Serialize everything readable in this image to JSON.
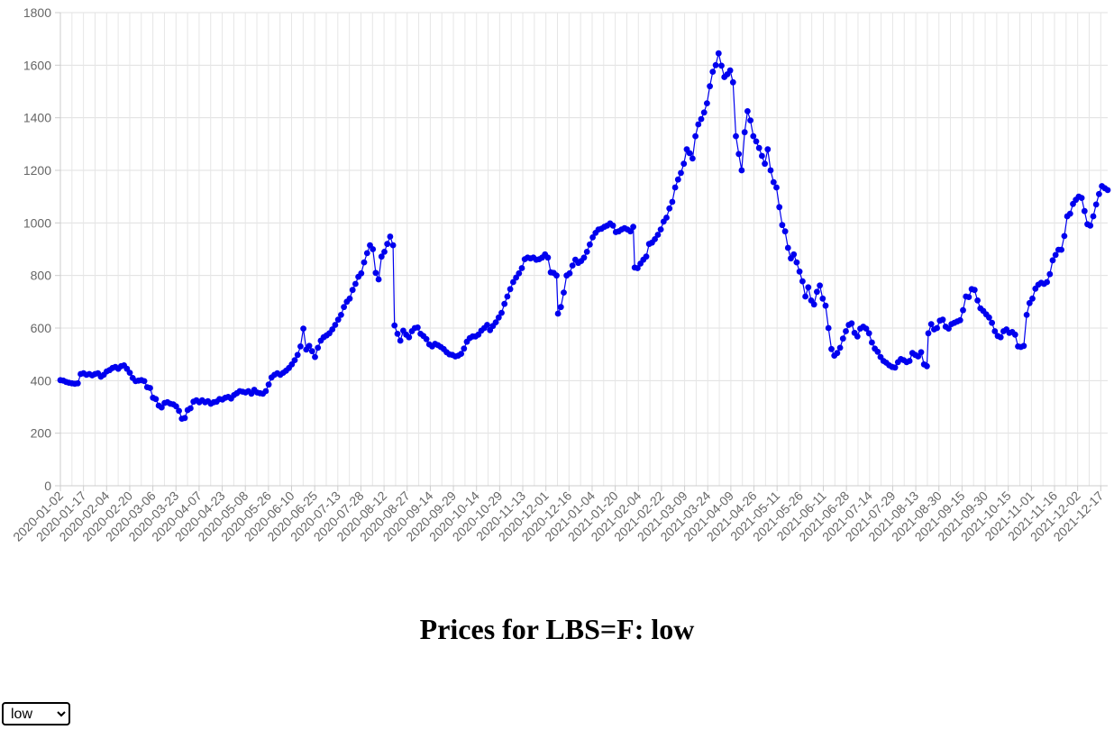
{
  "title": "Prices for LBS=F: low",
  "field_select": {
    "value": "low",
    "options": [
      "low"
    ]
  },
  "chart_data": {
    "type": "line",
    "ylim": [
      0,
      1800
    ],
    "yticks": [
      0,
      200,
      400,
      600,
      800,
      1000,
      1200,
      1400,
      1600,
      1800
    ],
    "xlabels": [
      "2020-01-02",
      "2020-01-17",
      "2020-02-04",
      "2020-02-20",
      "2020-03-06",
      "2020-03-23",
      "2020-04-07",
      "2020-04-23",
      "2020-05-08",
      "2020-05-26",
      "2020-06-10",
      "2020-06-25",
      "2020-07-13",
      "2020-07-28",
      "2020-08-12",
      "2020-08-27",
      "2020-09-14",
      "2020-09-29",
      "2020-10-14",
      "2020-10-29",
      "2020-11-13",
      "2020-12-01",
      "2020-12-16",
      "2021-01-04",
      "2021-01-20",
      "2021-02-04",
      "2021-02-22",
      "2021-03-09",
      "2021-03-24",
      "2021-04-09",
      "2021-04-26",
      "2021-05-11",
      "2021-05-26",
      "2021-06-11",
      "2021-06-28",
      "2021-07-14",
      "2021-07-29",
      "2021-08-13",
      "2021-08-30",
      "2021-09-15",
      "2021-09-30",
      "2021-10-15",
      "2021-11-01",
      "2021-11-16",
      "2021-12-02",
      "2021-12-17"
    ],
    "grid": true,
    "color": "#0000ee",
    "values": [
      [
        0,
        402
      ],
      [
        2,
        400
      ],
      [
        4,
        395
      ],
      [
        6,
        392
      ],
      [
        8,
        390
      ],
      [
        10,
        388
      ],
      [
        12,
        390
      ],
      [
        14,
        425
      ],
      [
        16,
        428
      ],
      [
        18,
        422
      ],
      [
        20,
        425
      ],
      [
        22,
        420
      ],
      [
        24,
        425
      ],
      [
        26,
        428
      ],
      [
        28,
        415
      ],
      [
        30,
        422
      ],
      [
        32,
        435
      ],
      [
        34,
        440
      ],
      [
        36,
        448
      ],
      [
        38,
        452
      ],
      [
        40,
        445
      ],
      [
        42,
        455
      ],
      [
        44,
        458
      ],
      [
        46,
        445
      ],
      [
        48,
        430
      ],
      [
        50,
        410
      ],
      [
        52,
        398
      ],
      [
        54,
        400
      ],
      [
        56,
        402
      ],
      [
        58,
        398
      ],
      [
        60,
        375
      ],
      [
        62,
        372
      ],
      [
        64,
        335
      ],
      [
        66,
        330
      ],
      [
        68,
        305
      ],
      [
        70,
        298
      ],
      [
        72,
        315
      ],
      [
        74,
        318
      ],
      [
        76,
        312
      ],
      [
        78,
        310
      ],
      [
        80,
        302
      ],
      [
        82,
        285
      ],
      [
        84,
        255
      ],
      [
        86,
        258
      ],
      [
        88,
        288
      ],
      [
        90,
        295
      ],
      [
        92,
        320
      ],
      [
        94,
        325
      ],
      [
        96,
        318
      ],
      [
        98,
        325
      ],
      [
        100,
        318
      ],
      [
        102,
        322
      ],
      [
        104,
        312
      ],
      [
        106,
        318
      ],
      [
        108,
        320
      ],
      [
        110,
        330
      ],
      [
        112,
        328
      ],
      [
        114,
        335
      ],
      [
        116,
        338
      ],
      [
        118,
        332
      ],
      [
        120,
        345
      ],
      [
        122,
        352
      ],
      [
        124,
        360
      ],
      [
        126,
        358
      ],
      [
        128,
        355
      ],
      [
        130,
        360
      ],
      [
        132,
        350
      ],
      [
        134,
        365
      ],
      [
        136,
        355
      ],
      [
        138,
        352
      ],
      [
        140,
        350
      ],
      [
        142,
        360
      ],
      [
        144,
        385
      ],
      [
        146,
        412
      ],
      [
        148,
        422
      ],
      [
        150,
        428
      ],
      [
        152,
        422
      ],
      [
        154,
        430
      ],
      [
        156,
        438
      ],
      [
        158,
        448
      ],
      [
        160,
        462
      ],
      [
        162,
        478
      ],
      [
        164,
        498
      ],
      [
        166,
        530
      ],
      [
        168,
        598
      ],
      [
        170,
        518
      ],
      [
        172,
        532
      ],
      [
        174,
        512
      ],
      [
        176,
        490
      ],
      [
        178,
        525
      ],
      [
        180,
        552
      ],
      [
        182,
        565
      ],
      [
        184,
        572
      ],
      [
        186,
        580
      ],
      [
        188,
        595
      ],
      [
        190,
        612
      ],
      [
        192,
        632
      ],
      [
        194,
        650
      ],
      [
        196,
        680
      ],
      [
        198,
        700
      ],
      [
        200,
        712
      ],
      [
        202,
        745
      ],
      [
        204,
        768
      ],
      [
        206,
        795
      ],
      [
        208,
        808
      ],
      [
        210,
        850
      ],
      [
        212,
        885
      ],
      [
        214,
        915
      ],
      [
        216,
        900
      ],
      [
        218,
        810
      ],
      [
        220,
        785
      ],
      [
        222,
        872
      ],
      [
        224,
        890
      ],
      [
        226,
        920
      ],
      [
        228,
        948
      ],
      [
        230,
        915
      ],
      [
        231,
        610
      ],
      [
        233,
        578
      ],
      [
        235,
        552
      ],
      [
        237,
        590
      ],
      [
        239,
        575
      ],
      [
        241,
        565
      ],
      [
        243,
        588
      ],
      [
        245,
        600
      ],
      [
        247,
        602
      ],
      [
        249,
        578
      ],
      [
        251,
        570
      ],
      [
        253,
        558
      ],
      [
        255,
        538
      ],
      [
        257,
        530
      ],
      [
        259,
        540
      ],
      [
        261,
        535
      ],
      [
        263,
        528
      ],
      [
        265,
        520
      ],
      [
        267,
        508
      ],
      [
        269,
        500
      ],
      [
        271,
        498
      ],
      [
        273,
        492
      ],
      [
        275,
        495
      ],
      [
        277,
        502
      ],
      [
        279,
        522
      ],
      [
        281,
        548
      ],
      [
        283,
        562
      ],
      [
        285,
        568
      ],
      [
        287,
        568
      ],
      [
        289,
        575
      ],
      [
        291,
        590
      ],
      [
        293,
        600
      ],
      [
        295,
        612
      ],
      [
        297,
        592
      ],
      [
        299,
        608
      ],
      [
        301,
        622
      ],
      [
        303,
        640
      ],
      [
        305,
        658
      ],
      [
        307,
        692
      ],
      [
        309,
        720
      ],
      [
        311,
        748
      ],
      [
        313,
        775
      ],
      [
        315,
        792
      ],
      [
        317,
        808
      ],
      [
        319,
        828
      ],
      [
        321,
        862
      ],
      [
        323,
        868
      ],
      [
        325,
        865
      ],
      [
        327,
        868
      ],
      [
        329,
        860
      ],
      [
        331,
        862
      ],
      [
        333,
        868
      ],
      [
        335,
        880
      ],
      [
        337,
        868
      ],
      [
        339,
        812
      ],
      [
        341,
        810
      ],
      [
        343,
        800
      ],
      [
        344,
        655
      ],
      [
        346,
        680
      ],
      [
        348,
        735
      ],
      [
        350,
        800
      ],
      [
        352,
        808
      ],
      [
        354,
        838
      ],
      [
        356,
        860
      ],
      [
        358,
        848
      ],
      [
        360,
        855
      ],
      [
        362,
        868
      ],
      [
        364,
        890
      ],
      [
        366,
        918
      ],
      [
        368,
        945
      ],
      [
        370,
        962
      ],
      [
        372,
        975
      ],
      [
        374,
        978
      ],
      [
        376,
        985
      ],
      [
        378,
        990
      ],
      [
        380,
        998
      ],
      [
        382,
        990
      ],
      [
        384,
        965
      ],
      [
        386,
        968
      ],
      [
        388,
        975
      ],
      [
        390,
        980
      ],
      [
        392,
        975
      ],
      [
        394,
        968
      ],
      [
        396,
        985
      ],
      [
        397,
        830
      ],
      [
        399,
        828
      ],
      [
        401,
        845
      ],
      [
        403,
        860
      ],
      [
        405,
        872
      ],
      [
        407,
        920
      ],
      [
        409,
        925
      ],
      [
        411,
        938
      ],
      [
        413,
        955
      ],
      [
        415,
        975
      ],
      [
        417,
        1005
      ],
      [
        419,
        1020
      ],
      [
        421,
        1055
      ],
      [
        423,
        1080
      ],
      [
        425,
        1135
      ],
      [
        427,
        1165
      ],
      [
        429,
        1190
      ],
      [
        431,
        1225
      ],
      [
        433,
        1280
      ],
      [
        435,
        1265
      ],
      [
        437,
        1245
      ],
      [
        439,
        1330
      ],
      [
        441,
        1375
      ],
      [
        443,
        1395
      ],
      [
        445,
        1420
      ],
      [
        447,
        1455
      ],
      [
        449,
        1520
      ],
      [
        451,
        1575
      ],
      [
        453,
        1600
      ],
      [
        455,
        1645
      ],
      [
        457,
        1598
      ],
      [
        459,
        1555
      ],
      [
        461,
        1565
      ],
      [
        463,
        1580
      ],
      [
        465,
        1535
      ],
      [
        467,
        1330
      ],
      [
        469,
        1262
      ],
      [
        471,
        1200
      ],
      [
        473,
        1345
      ],
      [
        475,
        1425
      ],
      [
        477,
        1390
      ],
      [
        479,
        1330
      ],
      [
        481,
        1310
      ],
      [
        483,
        1285
      ],
      [
        485,
        1255
      ],
      [
        487,
        1225
      ],
      [
        489,
        1280
      ],
      [
        491,
        1200
      ],
      [
        493,
        1155
      ],
      [
        495,
        1135
      ],
      [
        497,
        1060
      ],
      [
        499,
        992
      ],
      [
        501,
        968
      ],
      [
        503,
        905
      ],
      [
        505,
        865
      ],
      [
        507,
        880
      ],
      [
        509,
        850
      ],
      [
        511,
        815
      ],
      [
        513,
        778
      ],
      [
        515,
        720
      ],
      [
        517,
        755
      ],
      [
        519,
        705
      ],
      [
        521,
        690
      ],
      [
        523,
        738
      ],
      [
        525,
        762
      ],
      [
        527,
        712
      ],
      [
        529,
        685
      ],
      [
        531,
        600
      ],
      [
        533,
        520
      ],
      [
        535,
        495
      ],
      [
        537,
        505
      ],
      [
        539,
        525
      ],
      [
        541,
        560
      ],
      [
        543,
        588
      ],
      [
        545,
        612
      ],
      [
        547,
        618
      ],
      [
        549,
        582
      ],
      [
        551,
        568
      ],
      [
        553,
        598
      ],
      [
        555,
        605
      ],
      [
        557,
        598
      ],
      [
        559,
        580
      ],
      [
        561,
        545
      ],
      [
        563,
        522
      ],
      [
        565,
        510
      ],
      [
        567,
        490
      ],
      [
        569,
        475
      ],
      [
        571,
        468
      ],
      [
        573,
        458
      ],
      [
        575,
        452
      ],
      [
        577,
        450
      ],
      [
        579,
        470
      ],
      [
        581,
        482
      ],
      [
        583,
        478
      ],
      [
        585,
        470
      ],
      [
        587,
        475
      ],
      [
        589,
        505
      ],
      [
        591,
        498
      ],
      [
        593,
        492
      ],
      [
        595,
        508
      ],
      [
        597,
        462
      ],
      [
        599,
        455
      ],
      [
        600,
        580
      ],
      [
        602,
        615
      ],
      [
        604,
        595
      ],
      [
        606,
        600
      ],
      [
        608,
        628
      ],
      [
        610,
        632
      ],
      [
        612,
        605
      ],
      [
        614,
        598
      ],
      [
        616,
        615
      ],
      [
        618,
        620
      ],
      [
        620,
        625
      ],
      [
        622,
        630
      ],
      [
        624,
        668
      ],
      [
        626,
        720
      ],
      [
        628,
        718
      ],
      [
        630,
        748
      ],
      [
        632,
        745
      ],
      [
        634,
        705
      ],
      [
        636,
        675
      ],
      [
        638,
        665
      ],
      [
        640,
        652
      ],
      [
        642,
        640
      ],
      [
        644,
        620
      ],
      [
        646,
        588
      ],
      [
        648,
        570
      ],
      [
        650,
        565
      ],
      [
        652,
        588
      ],
      [
        654,
        595
      ],
      [
        656,
        582
      ],
      [
        658,
        585
      ],
      [
        660,
        575
      ],
      [
        662,
        530
      ],
      [
        664,
        528
      ],
      [
        666,
        532
      ],
      [
        668,
        650
      ],
      [
        670,
        695
      ],
      [
        672,
        712
      ],
      [
        674,
        750
      ],
      [
        676,
        765
      ],
      [
        678,
        772
      ],
      [
        680,
        768
      ],
      [
        682,
        775
      ],
      [
        684,
        805
      ],
      [
        686,
        858
      ],
      [
        688,
        878
      ],
      [
        690,
        898
      ],
      [
        692,
        898
      ],
      [
        694,
        950
      ],
      [
        696,
        1025
      ],
      [
        698,
        1035
      ],
      [
        700,
        1072
      ],
      [
        702,
        1088
      ],
      [
        704,
        1100
      ],
      [
        706,
        1095
      ],
      [
        708,
        1045
      ],
      [
        710,
        995
      ],
      [
        712,
        990
      ],
      [
        714,
        1025
      ],
      [
        716,
        1070
      ],
      [
        718,
        1110
      ],
      [
        720,
        1140
      ],
      [
        722,
        1132
      ],
      [
        724,
        1125
      ]
    ]
  }
}
